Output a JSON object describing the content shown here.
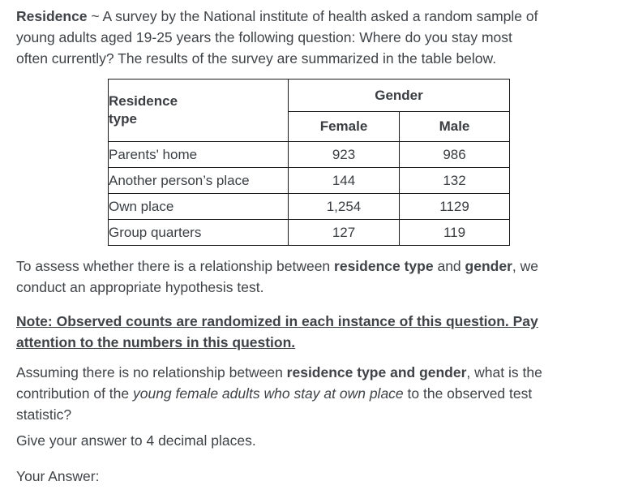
{
  "page": {
    "background": "#ffffff",
    "text_color": "#3f4347",
    "table_border_color": "#1a1a1a"
  },
  "intro_paragraph": [
    {
      "t": "Residence",
      "b": true
    },
    {
      "t": " ~ A survey by the National institute of health asked a random sample of",
      "br": true
    },
    {
      "t": "young adults aged 19-25 years the following question: Where do you stay most",
      "br": true
    },
    {
      "t": "often currently? The results of the survey are summarized in the table below."
    }
  ],
  "survey_table": {
    "corner": [
      {
        "t": "Residence",
        "br": true
      },
      {
        "t": "type"
      }
    ],
    "group_header": "Gender",
    "columns": [
      "Female",
      "Male"
    ],
    "rows": [
      {
        "label": "Parents' home",
        "female": "923",
        "male": "986"
      },
      {
        "label": "Another person’s place",
        "female": "144",
        "male": "132"
      },
      {
        "label": "Own place",
        "female": "1,254",
        "male": "1129"
      },
      {
        "label": "Group quarters",
        "female": "127",
        "male": "119"
      }
    ]
  },
  "assess_paragraph": [
    {
      "t": "To assess whether there is a relationship between "
    },
    {
      "t": "residence type",
      "b": true
    },
    {
      "t": " and "
    },
    {
      "t": "gender",
      "b": true
    },
    {
      "t": ", we",
      "br": true
    },
    {
      "t": "conduct an appropriate hypothesis test."
    }
  ],
  "note_paragraph": [
    {
      "t": "Note: Observed counts are randomized in each instance of this question. Pay ",
      "b": true,
      "u": true,
      "br": true
    },
    {
      "t": "attention to the numbers in this question.",
      "b": true,
      "u": true
    }
  ],
  "question_paragraph": [
    {
      "t": "Assuming there is no relationship between "
    },
    {
      "t": "residence type and gender",
      "b": true
    },
    {
      "t": ", what is the",
      "br": true
    },
    {
      "t": "contribution of the "
    },
    {
      "t": "young female adults who stay at own place",
      "i": true
    },
    {
      "t": " to the observed test",
      "br": true
    },
    {
      "t": "statistic?"
    }
  ],
  "instruction": "Give your answer to 4 decimal places.",
  "answer_label": "Your Answer:"
}
